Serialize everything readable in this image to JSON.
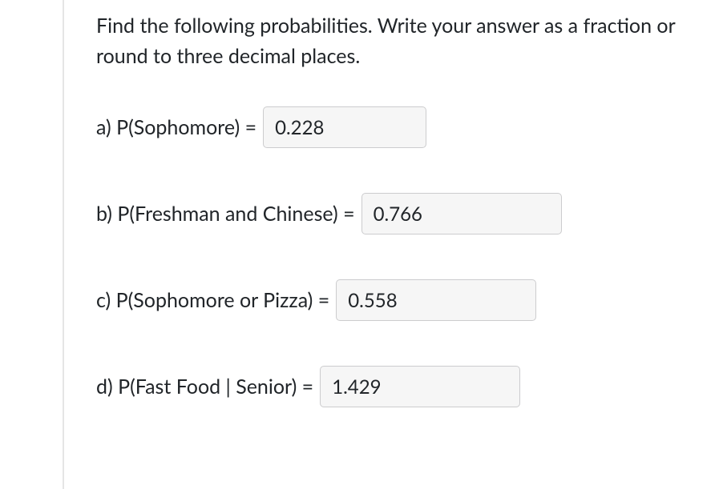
{
  "instructions": "Find the following probabilities. Write your answer as a fraction or round to three decimal places.",
  "questions": {
    "a": {
      "label": "a) P(Sophomore) =",
      "value": "0.228"
    },
    "b": {
      "label": "b) P(Freshman and Chinese) =",
      "value": "0.766"
    },
    "c": {
      "label": "c) P(Sophomore or Pizza) =",
      "value": "0.558"
    },
    "d": {
      "label": "d) P(Fast Food | Senior) =",
      "value": "1.429"
    }
  },
  "styling": {
    "font_size_body": 25,
    "font_size_input": 24,
    "text_color": "#212529",
    "input_bg": "#f6f6f6",
    "input_border": "#ccccce",
    "input_border_radius": 5,
    "left_rule_color": "#e5e5e5",
    "background": "#ffffff"
  }
}
